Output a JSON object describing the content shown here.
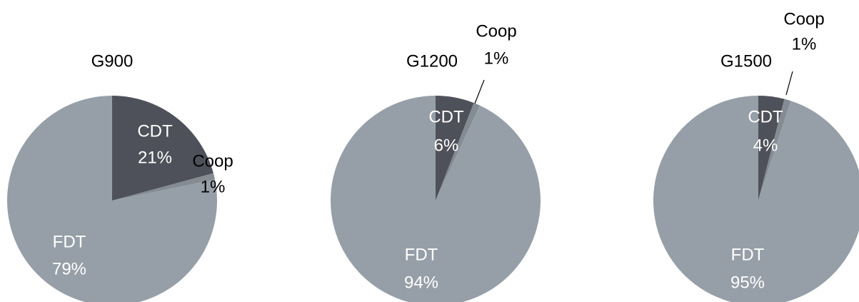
{
  "chart_data": [
    {
      "type": "pie",
      "title": "G900",
      "categories": [
        "CDT",
        "Coop",
        "FDT"
      ],
      "values": [
        21,
        1,
        79
      ],
      "value_labels": [
        "21%",
        "1%",
        "79%"
      ],
      "colors": [
        "#4e5159",
        "#848b93",
        "#969fa8"
      ]
    },
    {
      "type": "pie",
      "title": "G1200",
      "categories": [
        "CDT",
        "Coop",
        "FDT"
      ],
      "values": [
        6,
        1,
        94
      ],
      "value_labels": [
        "6%",
        "1%",
        "94%"
      ],
      "colors": [
        "#4e5159",
        "#848b93",
        "#969fa8"
      ]
    },
    {
      "type": "pie",
      "title": "G1500",
      "categories": [
        "CDT",
        "Coop",
        "FDT"
      ],
      "values": [
        4,
        1,
        95
      ],
      "value_labels": [
        "4%",
        "1%",
        "95%"
      ],
      "colors": [
        "#4e5159",
        "#848b93",
        "#969fa8"
      ]
    }
  ]
}
